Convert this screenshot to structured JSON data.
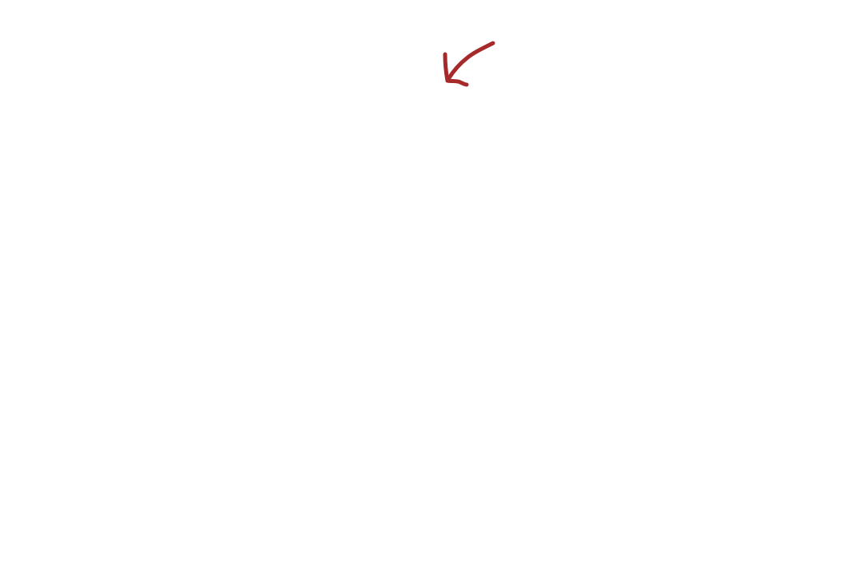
{
  "canvas": {
    "background": "#ffffff",
    "annotation": {
      "icon": "hand-drawn-arrow-icon",
      "direction": "down-left",
      "color": "#a62a2a"
    }
  }
}
